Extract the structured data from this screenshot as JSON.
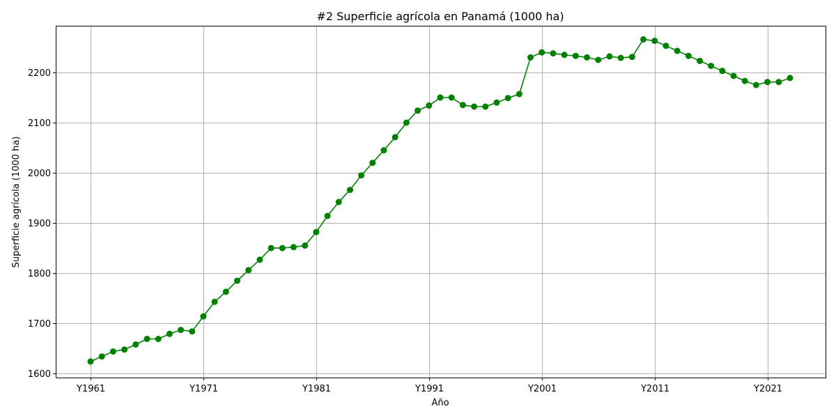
{
  "chart_data": {
    "type": "line",
    "title": "#2 Superficie agrícola en Panamá (1000 ha)",
    "xlabel": "Año",
    "ylabel": "Superficie agrícola (1000 ha)",
    "ylim": [
      1592,
      2293
    ],
    "y_ticks": [
      1600,
      1700,
      1800,
      1900,
      2000,
      2100,
      2200
    ],
    "x_tick_labels": [
      "Y1961",
      "Y1971",
      "Y1981",
      "Y1991",
      "Y2001",
      "Y2011",
      "Y2021"
    ],
    "grid": true,
    "color": "#008000",
    "series": [
      {
        "name": "Superficie agrícola",
        "x": [
          "Y1961",
          "Y1962",
          "Y1963",
          "Y1964",
          "Y1965",
          "Y1966",
          "Y1967",
          "Y1968",
          "Y1969",
          "Y1970",
          "Y1971",
          "Y1972",
          "Y1973",
          "Y1974",
          "Y1975",
          "Y1976",
          "Y1977",
          "Y1978",
          "Y1979",
          "Y1980",
          "Y1981",
          "Y1982",
          "Y1983",
          "Y1984",
          "Y1985",
          "Y1986",
          "Y1987",
          "Y1988",
          "Y1989",
          "Y1990",
          "Y1991",
          "Y1992",
          "Y1993",
          "Y1994",
          "Y1995",
          "Y1996",
          "Y1997",
          "Y1998",
          "Y1999",
          "Y2000",
          "Y2001",
          "Y2002",
          "Y2003",
          "Y2004",
          "Y2005",
          "Y2006",
          "Y2007",
          "Y2008",
          "Y2009",
          "Y2010",
          "Y2011",
          "Y2012",
          "Y2013",
          "Y2014",
          "Y2015",
          "Y2016",
          "Y2017",
          "Y2018",
          "Y2019",
          "Y2020",
          "Y2021",
          "Y2022",
          "Y2023"
        ],
        "values": [
          1624,
          1634,
          1644,
          1648,
          1658,
          1669,
          1669,
          1679,
          1687,
          1684,
          1714,
          1743,
          1763,
          1785,
          1806,
          1827,
          1850,
          1850,
          1852,
          1855,
          1882,
          1914,
          1942,
          1966,
          1995,
          2020,
          2045,
          2071,
          2100,
          2124,
          2134,
          2150,
          2150,
          2135,
          2132,
          2132,
          2140,
          2149,
          2157,
          2230,
          2240,
          2238,
          2235,
          2233,
          2230,
          2225,
          2232,
          2229,
          2231,
          2266,
          2263,
          2253,
          2243,
          2233,
          2223,
          2213,
          2203,
          2193,
          2183,
          2175,
          2181,
          2181,
          2189
        ]
      }
    ]
  }
}
